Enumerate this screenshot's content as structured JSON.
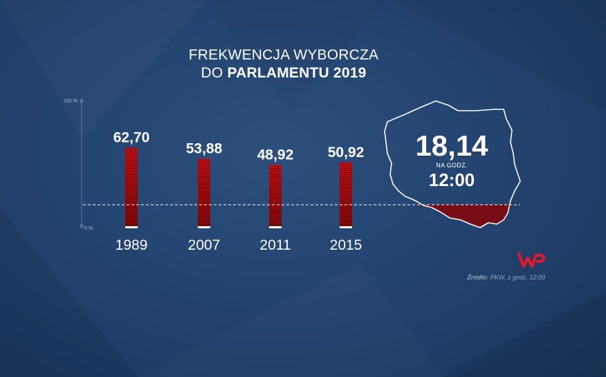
{
  "header": {
    "title_line1": "FREKWENCJA WYBORCZA",
    "title_line2_prefix": "DO ",
    "title_line2_bold": "PARLAMENTU 2019"
  },
  "chart_data": {
    "type": "bar",
    "categories": [
      "1989",
      "2007",
      "2011",
      "2015"
    ],
    "values": [
      62.7,
      53.88,
      48.92,
      50.92
    ],
    "value_labels": [
      "62,70",
      "53,88",
      "48,92",
      "50,92"
    ],
    "ylim": [
      0,
      100
    ],
    "y_tick_labels": [
      "100 %",
      "0 %"
    ],
    "reference_value": 18.14,
    "grid": false,
    "bar_color": "#b5090c"
  },
  "highlight": {
    "value": "18,14",
    "at_label": "NA GODZ.",
    "time": "12:00"
  },
  "source": {
    "label": "Źródło:",
    "text": " PKW, z godz. 12:00"
  },
  "logo": {
    "icon": "wp-logo-icon",
    "color": "#e3162b"
  },
  "colors": {
    "background": "#234470",
    "map_fill": "#7d0a12",
    "outline": "#ffffff"
  }
}
